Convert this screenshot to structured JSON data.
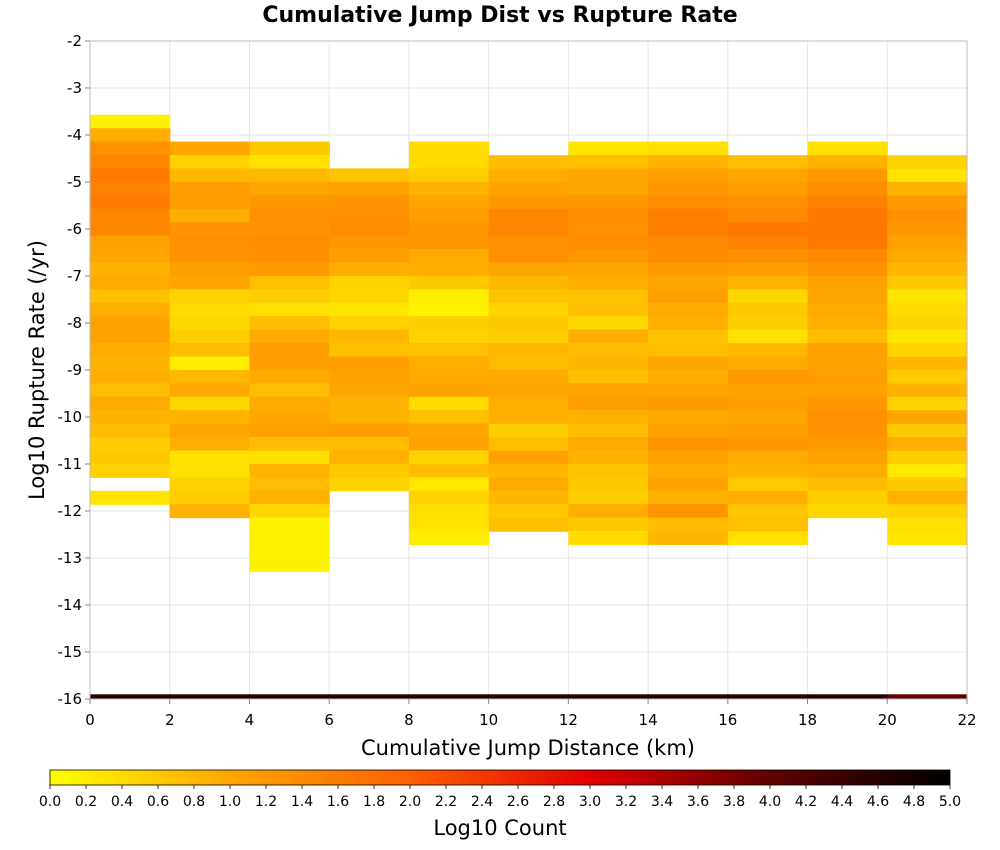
{
  "chart_data": {
    "type": "heatmap",
    "title": "Cumulative Jump Dist vs Rupture Rate",
    "xlabel": "Cumulative Jump Distance (km)",
    "ylabel": "Log10 Rupture Rate (/yr)",
    "colorbar_label": "Log10 Count",
    "xlim": [
      0,
      22
    ],
    "ylim": [
      -16,
      -2
    ],
    "x_ticks": [
      "0",
      "2",
      "4",
      "6",
      "8",
      "10",
      "12",
      "14",
      "16",
      "18",
      "20",
      "22"
    ],
    "y_ticks": [
      "-2",
      "-3",
      "-4",
      "-5",
      "-6",
      "-7",
      "-8",
      "-9",
      "-10",
      "-11",
      "-12",
      "-13",
      "-14",
      "-15",
      "-16"
    ],
    "colorbar_ticks": [
      "0.0",
      "0.2",
      "0.4",
      "0.6",
      "0.8",
      "1.0",
      "1.2",
      "1.4",
      "1.6",
      "1.8",
      "2.0",
      "2.2",
      "2.4",
      "2.6",
      "2.8",
      "3.0",
      "3.2",
      "3.4",
      "3.6",
      "3.8",
      "4.0",
      "4.2",
      "4.4",
      "4.6",
      "4.8",
      "5.0"
    ],
    "colorbar_range": [
      0,
      5
    ],
    "colormap": [
      "#ffff00",
      "#ffa500",
      "#ff6000",
      "#e00000",
      "#600000",
      "#000000"
    ],
    "grid": true,
    "x_bin_width": 2,
    "y_bin_height": 0.2857,
    "columns": [
      {
        "x": 0,
        "y_top": -3.57,
        "values": [
          0.15,
          0.9,
          1.3,
          1.45,
          1.6,
          1.5,
          1.6,
          1.45,
          1.45,
          1.05,
          1.0,
          0.85,
          0.95,
          0.7,
          0.9,
          1.05,
          1.05,
          0.9,
          0.85,
          0.9,
          0.75,
          0.95,
          0.85,
          0.75,
          0.55,
          0.6,
          0.5,
          null,
          0.3
        ]
      },
      {
        "x": 2,
        "y_top": -4.14,
        "values": [
          1.0,
          0.5,
          0.8,
          1.1,
          1.1,
          0.9,
          1.25,
          1.3,
          1.25,
          1.1,
          1.0,
          0.5,
          0.4,
          0.45,
          0.55,
          0.75,
          0.2,
          0.8,
          0.95,
          0.45,
          0.85,
          1.0,
          0.9,
          0.35,
          0.35,
          0.5,
          0.55,
          0.85
        ]
      },
      {
        "x": 4,
        "y_top": -4.14,
        "values": [
          0.6,
          0.35,
          0.8,
          1.0,
          1.2,
          1.3,
          1.25,
          1.35,
          1.3,
          1.15,
          0.7,
          0.55,
          0.35,
          0.75,
          0.95,
          1.1,
          1.1,
          0.95,
          0.75,
          0.95,
          1.0,
          1.05,
          0.75,
          0.35,
          0.85,
          0.75,
          0.85,
          0.45,
          0.15,
          0.15,
          0.15,
          0.15
        ]
      },
      {
        "x": 6,
        "y_top": -4.71,
        "values": [
          0.65,
          1.05,
          1.25,
          1.3,
          1.35,
          1.2,
          1.1,
          0.9,
          0.5,
          0.45,
          0.3,
          0.5,
          0.8,
          0.7,
          1.1,
          1.05,
          1.0,
          0.85,
          0.85,
          1.1,
          0.75,
          0.85,
          0.6,
          0.5
        ]
      },
      {
        "x": 8,
        "y_top": -4.14,
        "values": [
          0.4,
          0.4,
          0.55,
          0.85,
          1.0,
          1.1,
          1.2,
          1.2,
          0.95,
          0.9,
          0.6,
          0.2,
          0.15,
          0.55,
          0.5,
          0.7,
          0.9,
          0.95,
          1.05,
          0.4,
          0.7,
          1.0,
          1.05,
          0.5,
          0.75,
          0.25,
          0.5,
          0.35,
          0.3,
          0.2
        ]
      },
      {
        "x": 10,
        "y_top": -4.43,
        "values": [
          0.75,
          0.9,
          1.05,
          1.2,
          1.45,
          1.45,
          1.3,
          1.3,
          1.0,
          0.8,
          0.65,
          0.5,
          0.6,
          0.55,
          0.8,
          0.75,
          0.95,
          1.0,
          0.9,
          0.9,
          0.55,
          0.75,
          1.05,
          0.8,
          0.95,
          0.8,
          0.6,
          0.7
        ]
      },
      {
        "x": 12,
        "y_top": -4.14,
        "values": [
          0.3,
          0.7,
          1.0,
          1.0,
          1.2,
          1.35,
          1.3,
          1.35,
          1.2,
          1.0,
          0.9,
          0.7,
          0.7,
          0.45,
          0.9,
          0.75,
          0.8,
          0.7,
          1.0,
          1.1,
          0.85,
          0.75,
          0.95,
          0.85,
          0.65,
          0.6,
          0.55,
          0.9,
          0.6,
          0.4
        ]
      },
      {
        "x": 14,
        "y_top": -4.14,
        "values": [
          0.35,
          0.85,
          1.1,
          1.2,
          1.35,
          1.55,
          1.55,
          1.4,
          1.35,
          1.15,
          1.0,
          1.1,
          0.95,
          0.9,
          0.7,
          0.75,
          1.0,
          0.9,
          1.0,
          1.15,
          0.95,
          1.05,
          1.25,
          1.05,
          0.95,
          1.05,
          0.85,
          1.25,
          0.75,
          0.8
        ]
      },
      {
        "x": 16,
        "y_top": -4.43,
        "values": [
          0.75,
          1.0,
          1.1,
          1.3,
          1.4,
          1.65,
          1.5,
          1.3,
          1.1,
          0.85,
          0.45,
          0.6,
          0.55,
          0.35,
          0.8,
          0.95,
          1.2,
          1.05,
          1.1,
          1.0,
          1.1,
          1.2,
          0.95,
          0.85,
          0.6,
          0.9,
          0.65,
          0.7,
          0.35
        ]
      },
      {
        "x": 18,
        "y_top": -4.14,
        "values": [
          0.35,
          0.85,
          1.2,
          1.35,
          1.5,
          1.65,
          1.65,
          1.65,
          1.4,
          1.25,
          1.05,
          1.0,
          0.95,
          0.9,
          0.75,
          1.05,
          1.05,
          1.1,
          1.05,
          1.2,
          1.3,
          1.25,
          1.15,
          1.05,
          0.9,
          0.75,
          0.55,
          0.45
        ]
      },
      {
        "x": 20,
        "y_top": -4.43,
        "values": [
          0.5,
          0.3,
          0.85,
          1.15,
          1.3,
          1.2,
          1.05,
          0.95,
          0.8,
          0.6,
          0.3,
          0.4,
          0.5,
          0.3,
          0.5,
          0.8,
          0.6,
          0.85,
          0.5,
          1.0,
          0.6,
          0.9,
          0.55,
          0.25,
          0.6,
          0.85,
          0.5,
          0.35,
          0.3
        ]
      }
    ],
    "bottom_band": {
      "y": -16,
      "values": [
        4.6,
        4.6,
        4.6,
        4.6,
        4.6,
        4.6,
        4.6,
        4.6,
        4.6,
        4.6,
        4.0
      ]
    }
  }
}
